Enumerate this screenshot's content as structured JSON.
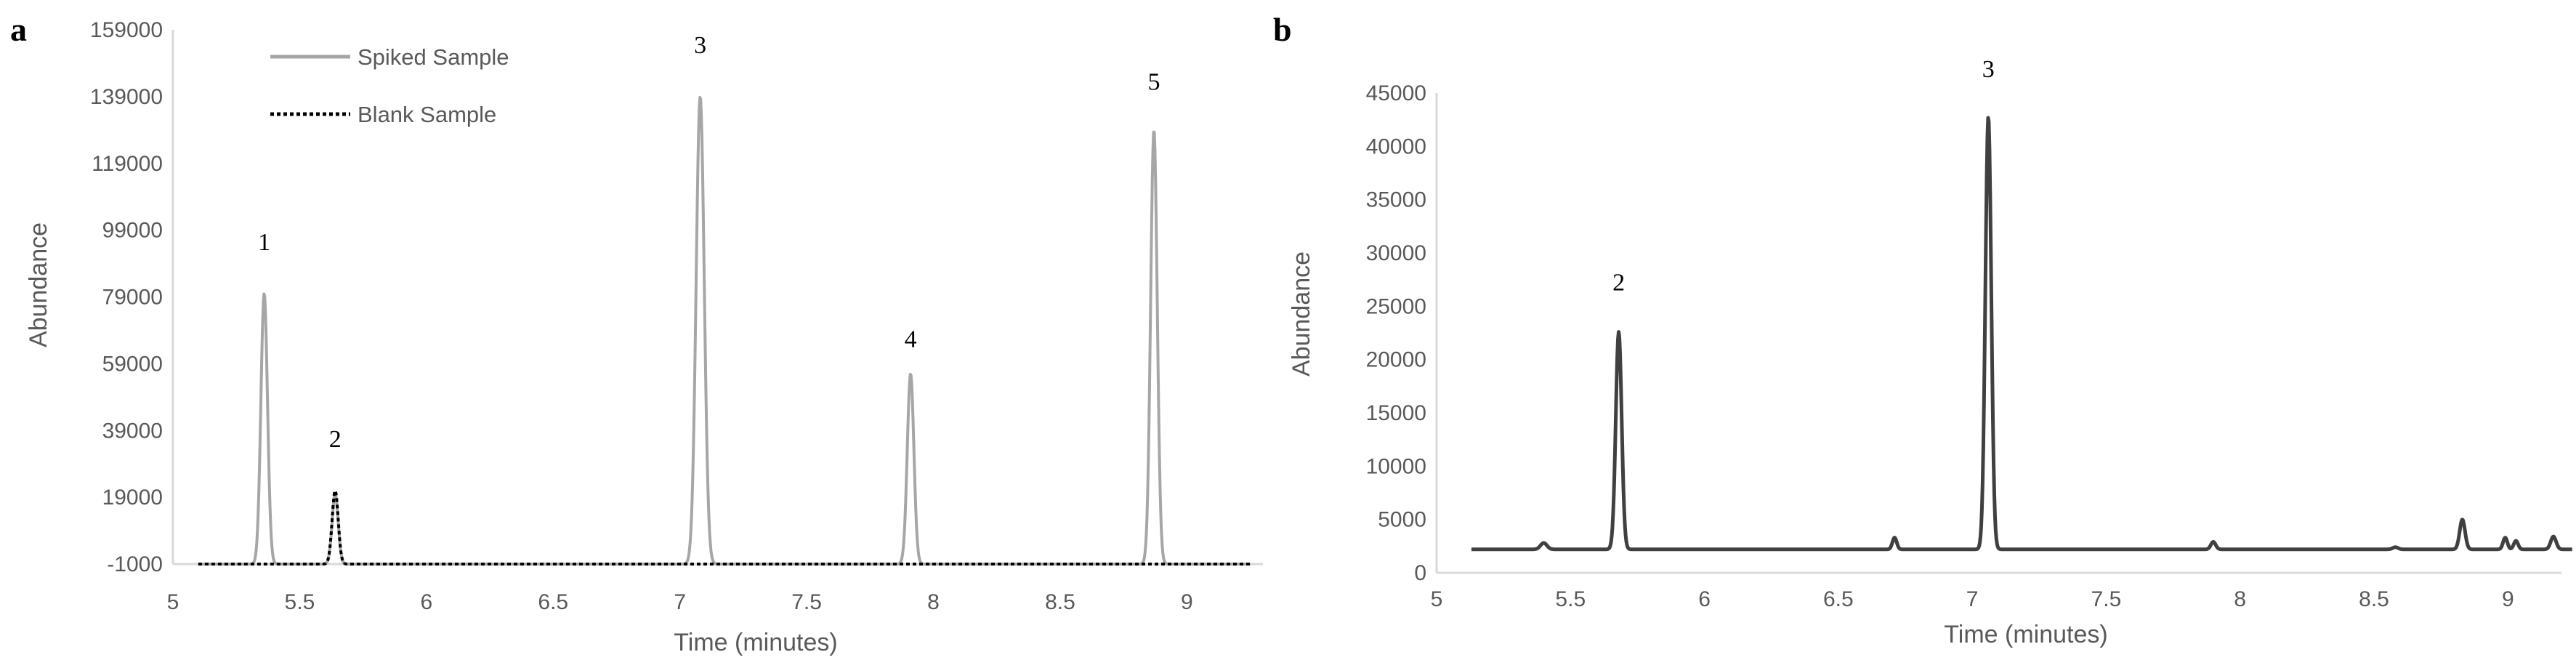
{
  "colors": {
    "axis": "#d9d9d9",
    "text": "#595959",
    "spiked_sample": "#a6a6a6",
    "blank_sample": "#000000",
    "panel_b_trace": "#404040"
  },
  "chart_data": [
    {
      "type": "line",
      "panel_letter": "a",
      "xlabel": "Time (minutes)",
      "ylabel": "Abundance",
      "xlim": [
        5,
        9.3
      ],
      "ylim": [
        -1000,
        159000
      ],
      "x_ticks": [
        "5",
        "5.5",
        "6",
        "6.5",
        "7",
        "7.5",
        "8",
        "8.5",
        "9"
      ],
      "y_ticks": [
        "-1000",
        "19000",
        "39000",
        "59000",
        "79000",
        "99000",
        "119000",
        "139000",
        "159000"
      ],
      "grid": false,
      "legend_position": "top-left",
      "series": [
        {
          "name": "Spiked Sample",
          "style": "solid",
          "baseline": -1000,
          "x_start": 5.1,
          "x_end": 9.25,
          "peaks": [
            {
              "x": 5.36,
              "y": 80000,
              "width": 0.013
            },
            {
              "x": 5.64,
              "y": 20000,
              "width": 0.012
            },
            {
              "x": 7.08,
              "y": 139000,
              "width": 0.016
            },
            {
              "x": 7.91,
              "y": 56000,
              "width": 0.013
            },
            {
              "x": 8.87,
              "y": 129000,
              "width": 0.013
            }
          ]
        },
        {
          "name": "Blank Sample",
          "style": "dotted",
          "baseline": -1000,
          "x_start": 5.1,
          "x_end": 9.25,
          "peaks": [
            {
              "x": 5.64,
              "y": 21000,
              "width": 0.012
            }
          ]
        }
      ],
      "peak_labels": [
        {
          "text": "1",
          "x": 5.36,
          "y": 93000
        },
        {
          "text": "2",
          "x": 5.64,
          "y": 34000
        },
        {
          "text": "3",
          "x": 7.08,
          "y": 152000
        },
        {
          "text": "4",
          "x": 7.91,
          "y": 64000
        },
        {
          "text": "5",
          "x": 8.87,
          "y": 141000
        }
      ]
    },
    {
      "type": "line",
      "panel_letter": "b",
      "xlabel": "Time (minutes)",
      "ylabel": "Abundance",
      "xlim": [
        5,
        9.2
      ],
      "ylim": [
        0,
        45000
      ],
      "x_ticks": [
        "5",
        "5.5",
        "6",
        "6.5",
        "7",
        "7.5",
        "8",
        "8.5",
        "9"
      ],
      "y_ticks": [
        "0",
        "5000",
        "10000",
        "15000",
        "20000",
        "25000",
        "30000",
        "35000",
        "40000",
        "45000"
      ],
      "grid": false,
      "series": [
        {
          "name": "",
          "style": "solid",
          "baseline": 2200,
          "x_start": 5.13,
          "x_end": 9.24,
          "peaks": [
            {
              "x": 5.4,
              "y": 2800,
              "width": 0.012
            },
            {
              "x": 5.68,
              "y": 22600,
              "width": 0.011
            },
            {
              "x": 6.71,
              "y": 3300,
              "width": 0.008
            },
            {
              "x": 7.06,
              "y": 42800,
              "width": 0.011
            },
            {
              "x": 7.9,
              "y": 2900,
              "width": 0.009
            },
            {
              "x": 8.58,
              "y": 2400,
              "width": 0.01
            },
            {
              "x": 8.83,
              "y": 5000,
              "width": 0.01
            },
            {
              "x": 8.99,
              "y": 3300,
              "width": 0.008
            },
            {
              "x": 9.03,
              "y": 3000,
              "width": 0.008
            },
            {
              "x": 9.17,
              "y": 3400,
              "width": 0.01
            }
          ]
        }
      ],
      "peak_labels": [
        {
          "text": "2",
          "x": 5.68,
          "y": 26500
        },
        {
          "text": "3",
          "x": 7.06,
          "y": 46500
        }
      ]
    }
  ]
}
